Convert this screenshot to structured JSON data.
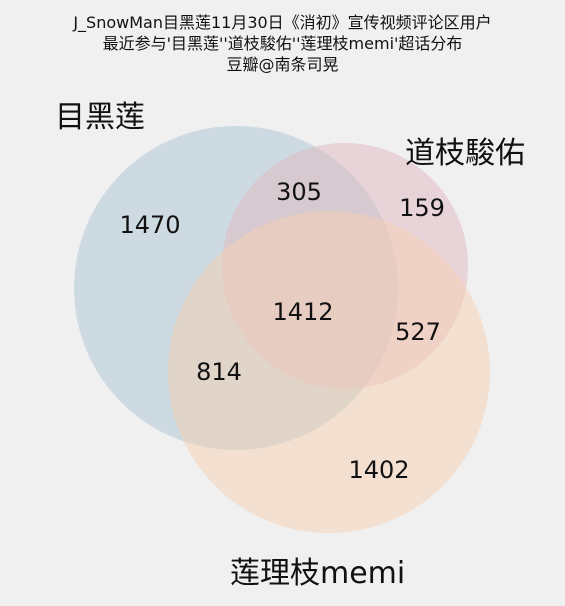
{
  "chart_data": {
    "type": "venn",
    "title": "J_SnowMan目黑莲11月30日《消初》宣传视频评论区用户\n最近参与'目黑莲''道枝駿佑''莲理枝memi'超话分布\n豆瓣@南条司晃",
    "sets": [
      {
        "name": "目黑莲",
        "color": "#a9c4d1"
      },
      {
        "name": "道枝駿佑",
        "color": "#dfb7c0"
      },
      {
        "name": "莲理枝memi",
        "color": "#f6cfb2"
      }
    ],
    "regions": [
      {
        "sets": [
          "目黑莲"
        ],
        "value": 1470
      },
      {
        "sets": [
          "道枝駿佑"
        ],
        "value": 159
      },
      {
        "sets": [
          "莲理枝memi"
        ],
        "value": 1402
      },
      {
        "sets": [
          "目黑莲",
          "道枝駿佑"
        ],
        "value": 305
      },
      {
        "sets": [
          "目黑莲",
          "莲理枝memi"
        ],
        "value": 814
      },
      {
        "sets": [
          "道枝駿佑",
          "莲理枝memi"
        ],
        "value": 527
      },
      {
        "sets": [
          "目黑莲",
          "道枝駿佑",
          "莲理枝memi"
        ],
        "value": 1412
      }
    ]
  }
}
